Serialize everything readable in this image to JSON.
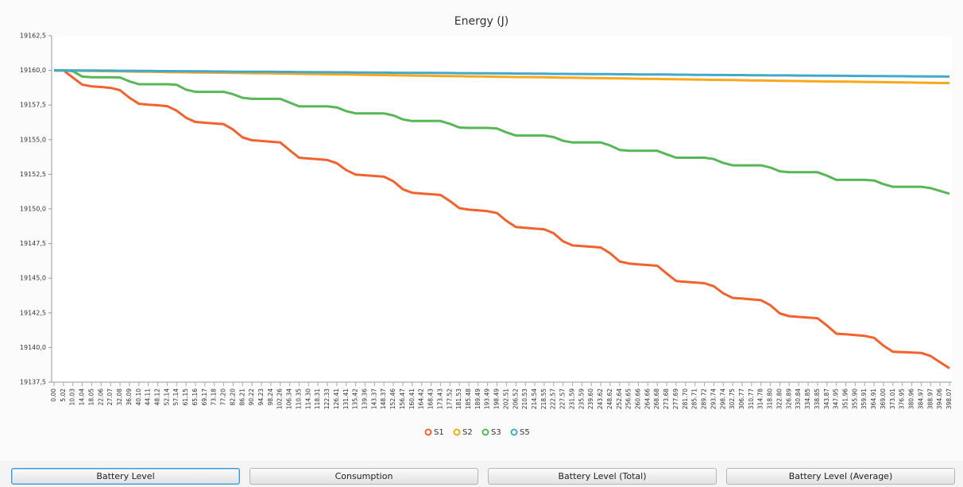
{
  "chart_data": {
    "type": "line",
    "title": "Energy (J)",
    "categories": [
      "0.00",
      "5.02",
      "10.03",
      "14.04",
      "18.05",
      "22.06",
      "27.07",
      "32.08",
      "36.09",
      "40.10",
      "44.11",
      "48.12",
      "52.14",
      "57.14",
      "61.15",
      "65.16",
      "69.17",
      "73.18",
      "77.20",
      "82.20",
      "86.21",
      "90.22",
      "94.23",
      "98.24",
      "102.26",
      "106.34",
      "110.35",
      "114.30",
      "118.31",
      "122.33",
      "126.41",
      "131.41",
      "135.42",
      "139.36",
      "143.37",
      "148.37",
      "152.46",
      "156.47",
      "160.41",
      "164.42",
      "168.43",
      "173.43",
      "177.52",
      "181.53",
      "185.48",
      "189.49",
      "193.49",
      "198.49",
      "202.51",
      "206.52",
      "210.53",
      "214.54",
      "218.55",
      "222.57",
      "227.57",
      "231.59",
      "235.59",
      "239.60",
      "243.62",
      "248.62",
      "252.64",
      "256.65",
      "260.66",
      "264.66",
      "268.68",
      "273.68",
      "277.69",
      "281.70",
      "285.71",
      "289.72",
      "293.74",
      "298.74",
      "302.75",
      "306.77",
      "310.77",
      "314.78",
      "318.80",
      "322.80",
      "326.89",
      "330.84",
      "334.85",
      "338.85",
      "343.87",
      "347.95",
      "351.96",
      "355.90",
      "359.91",
      "364.91",
      "369.00",
      "373.01",
      "376.95",
      "380.96",
      "384.97",
      "388.97",
      "394.06",
      "398.07"
    ],
    "series": [
      {
        "name": "S1",
        "color": "#f3622d",
        "values": [
          19160,
          19160,
          19159.48,
          19158.97,
          19158.85,
          19158.8,
          19158.74,
          19158.57,
          19158.03,
          19157.59,
          19157.53,
          19157.48,
          19157.42,
          19157.1,
          19156.58,
          19156.28,
          19156.22,
          19156.17,
          19156.12,
          19155.73,
          19155.16,
          19154.96,
          19154.91,
          19154.85,
          19154.8,
          19154.24,
          19153.7,
          19153.64,
          19153.59,
          19153.53,
          19153.3,
          19152.8,
          19152.48,
          19152.43,
          19152.38,
          19152.33,
          19152,
          19151.42,
          19151.17,
          19151.11,
          19151.06,
          19151.01,
          19150.57,
          19150.06,
          19149.95,
          19149.9,
          19149.84,
          19149.7,
          19149.14,
          19148.69,
          19148.64,
          19148.58,
          19148.53,
          19148.25,
          19147.66,
          19147.37,
          19147.32,
          19147.27,
          19147.22,
          19146.8,
          19146.21,
          19146.06,
          19146,
          19145.95,
          19145.9,
          19145.34,
          19144.8,
          19144.74,
          19144.69,
          19144.64,
          19144.42,
          19143.91,
          19143.58,
          19143.53,
          19143.47,
          19143.42,
          19143.05,
          19142.46,
          19142.26,
          19142.21,
          19142.16,
          19142.11,
          19141.59,
          19141,
          19140.95,
          19140.9,
          19140.84,
          19140.7,
          19140.13,
          19139.69,
          19139.67,
          19139.64,
          19139.61,
          19139.38,
          19138.94,
          19138.5
        ]
      },
      {
        "name": "S2",
        "color": "#fba71b",
        "values": [
          19160,
          19159.99,
          19159.98,
          19159.97,
          19159.96,
          19159.95,
          19159.94,
          19159.93,
          19159.92,
          19159.91,
          19159.9,
          19159.89,
          19159.88,
          19159.87,
          19159.86,
          19159.85,
          19159.84,
          19159.84,
          19159.83,
          19159.82,
          19159.81,
          19159.8,
          19159.79,
          19159.78,
          19159.77,
          19159.76,
          19159.75,
          19159.74,
          19159.73,
          19159.72,
          19159.71,
          19159.7,
          19159.69,
          19159.68,
          19159.67,
          19159.66,
          19159.65,
          19159.64,
          19159.63,
          19159.62,
          19159.61,
          19159.6,
          19159.59,
          19159.58,
          19159.57,
          19159.56,
          19159.55,
          19159.54,
          19159.53,
          19159.52,
          19159.52,
          19159.51,
          19159.5,
          19159.49,
          19159.48,
          19159.47,
          19159.46,
          19159.45,
          19159.44,
          19159.43,
          19159.42,
          19159.41,
          19159.4,
          19159.39,
          19159.38,
          19159.37,
          19159.36,
          19159.35,
          19159.34,
          19159.33,
          19159.32,
          19159.31,
          19159.3,
          19159.29,
          19159.28,
          19159.27,
          19159.26,
          19159.25,
          19159.24,
          19159.23,
          19159.22,
          19159.21,
          19159.2,
          19159.2,
          19159.19,
          19159.18,
          19159.17,
          19159.16,
          19159.15,
          19159.14,
          19159.13,
          19159.12,
          19159.11,
          19159.1,
          19159.09,
          19159.08
        ]
      },
      {
        "name": "S3",
        "color": "#57b757",
        "values": [
          19160,
          19160,
          19159.94,
          19159.55,
          19159.5,
          19159.5,
          19159.5,
          19159.49,
          19159.21,
          19159,
          19159,
          19159,
          19159,
          19158.96,
          19158.61,
          19158.45,
          19158.45,
          19158.45,
          19158.45,
          19158.28,
          19158.02,
          19157.95,
          19157.95,
          19157.95,
          19157.95,
          19157.68,
          19157.4,
          19157.4,
          19157.4,
          19157.4,
          19157.33,
          19157.06,
          19156.9,
          19156.9,
          19156.9,
          19156.9,
          19156.75,
          19156.46,
          19156.35,
          19156.35,
          19156.35,
          19156.35,
          19156.14,
          19155.88,
          19155.85,
          19155.85,
          19155.85,
          19155.8,
          19155.52,
          19155.3,
          19155.3,
          19155.3,
          19155.3,
          19155.19,
          19154.92,
          19154.8,
          19154.8,
          19154.8,
          19154.8,
          19154.58,
          19154.26,
          19154.2,
          19154.2,
          19154.2,
          19154.2,
          19153.94,
          19153.7,
          19153.7,
          19153.7,
          19153.7,
          19153.6,
          19153.32,
          19153.15,
          19153.15,
          19153.15,
          19153.15,
          19152.99,
          19152.72,
          19152.65,
          19152.65,
          19152.65,
          19152.65,
          19152.4,
          19152.1,
          19152.1,
          19152.1,
          19152.1,
          19152.05,
          19151.79,
          19151.6,
          19151.6,
          19151.6,
          19151.6,
          19151.5,
          19151.3,
          19151.1
        ]
      },
      {
        "name": "S5",
        "color": "#41a9c9",
        "values": [
          19160,
          19160,
          19160,
          19159.99,
          19159.99,
          19159.98,
          19159.98,
          19159.97,
          19159.97,
          19159.96,
          19159.96,
          19159.95,
          19159.95,
          19159.94,
          19159.94,
          19159.93,
          19159.93,
          19159.92,
          19159.92,
          19159.91,
          19159.91,
          19159.91,
          19159.9,
          19159.9,
          19159.89,
          19159.89,
          19159.88,
          19159.88,
          19159.87,
          19159.87,
          19159.86,
          19159.86,
          19159.85,
          19159.85,
          19159.84,
          19159.84,
          19159.83,
          19159.83,
          19159.82,
          19159.82,
          19159.82,
          19159.81,
          19159.81,
          19159.8,
          19159.8,
          19159.79,
          19159.79,
          19159.78,
          19159.78,
          19159.77,
          19159.77,
          19159.76,
          19159.76,
          19159.75,
          19159.75,
          19159.74,
          19159.74,
          19159.73,
          19159.73,
          19159.73,
          19159.72,
          19159.72,
          19159.71,
          19159.71,
          19159.7,
          19159.7,
          19159.69,
          19159.69,
          19159.68,
          19159.68,
          19159.67,
          19159.67,
          19159.66,
          19159.66,
          19159.65,
          19159.65,
          19159.64,
          19159.64,
          19159.64,
          19159.63,
          19159.63,
          19159.62,
          19159.62,
          19159.61,
          19159.61,
          19159.6,
          19159.6,
          19159.59,
          19159.59,
          19159.58,
          19159.58,
          19159.57,
          19159.57,
          19159.56,
          19159.56,
          19159.55
        ]
      }
    ],
    "ylim": [
      19137.5,
      19162.5
    ],
    "yticks": [
      {
        "value": 19137.5,
        "label": "19137,5"
      },
      {
        "value": 19140,
        "label": "19140,0"
      },
      {
        "value": 19142.5,
        "label": "19142,5"
      },
      {
        "value": 19145,
        "label": "19145,0"
      },
      {
        "value": 19147.5,
        "label": "19147,5"
      },
      {
        "value": 19150,
        "label": "19150,0"
      },
      {
        "value": 19152.5,
        "label": "19152,5"
      },
      {
        "value": 19155,
        "label": "19155,0"
      },
      {
        "value": 19157.5,
        "label": "19157,5"
      },
      {
        "value": 19160,
        "label": "19160,0"
      },
      {
        "value": 19162.5,
        "label": "19162,5"
      }
    ],
    "grid": false
  },
  "buttons": [
    "Battery Level",
    "Consumption",
    "Battery Level (Total)",
    "Battery Level (Average)"
  ]
}
